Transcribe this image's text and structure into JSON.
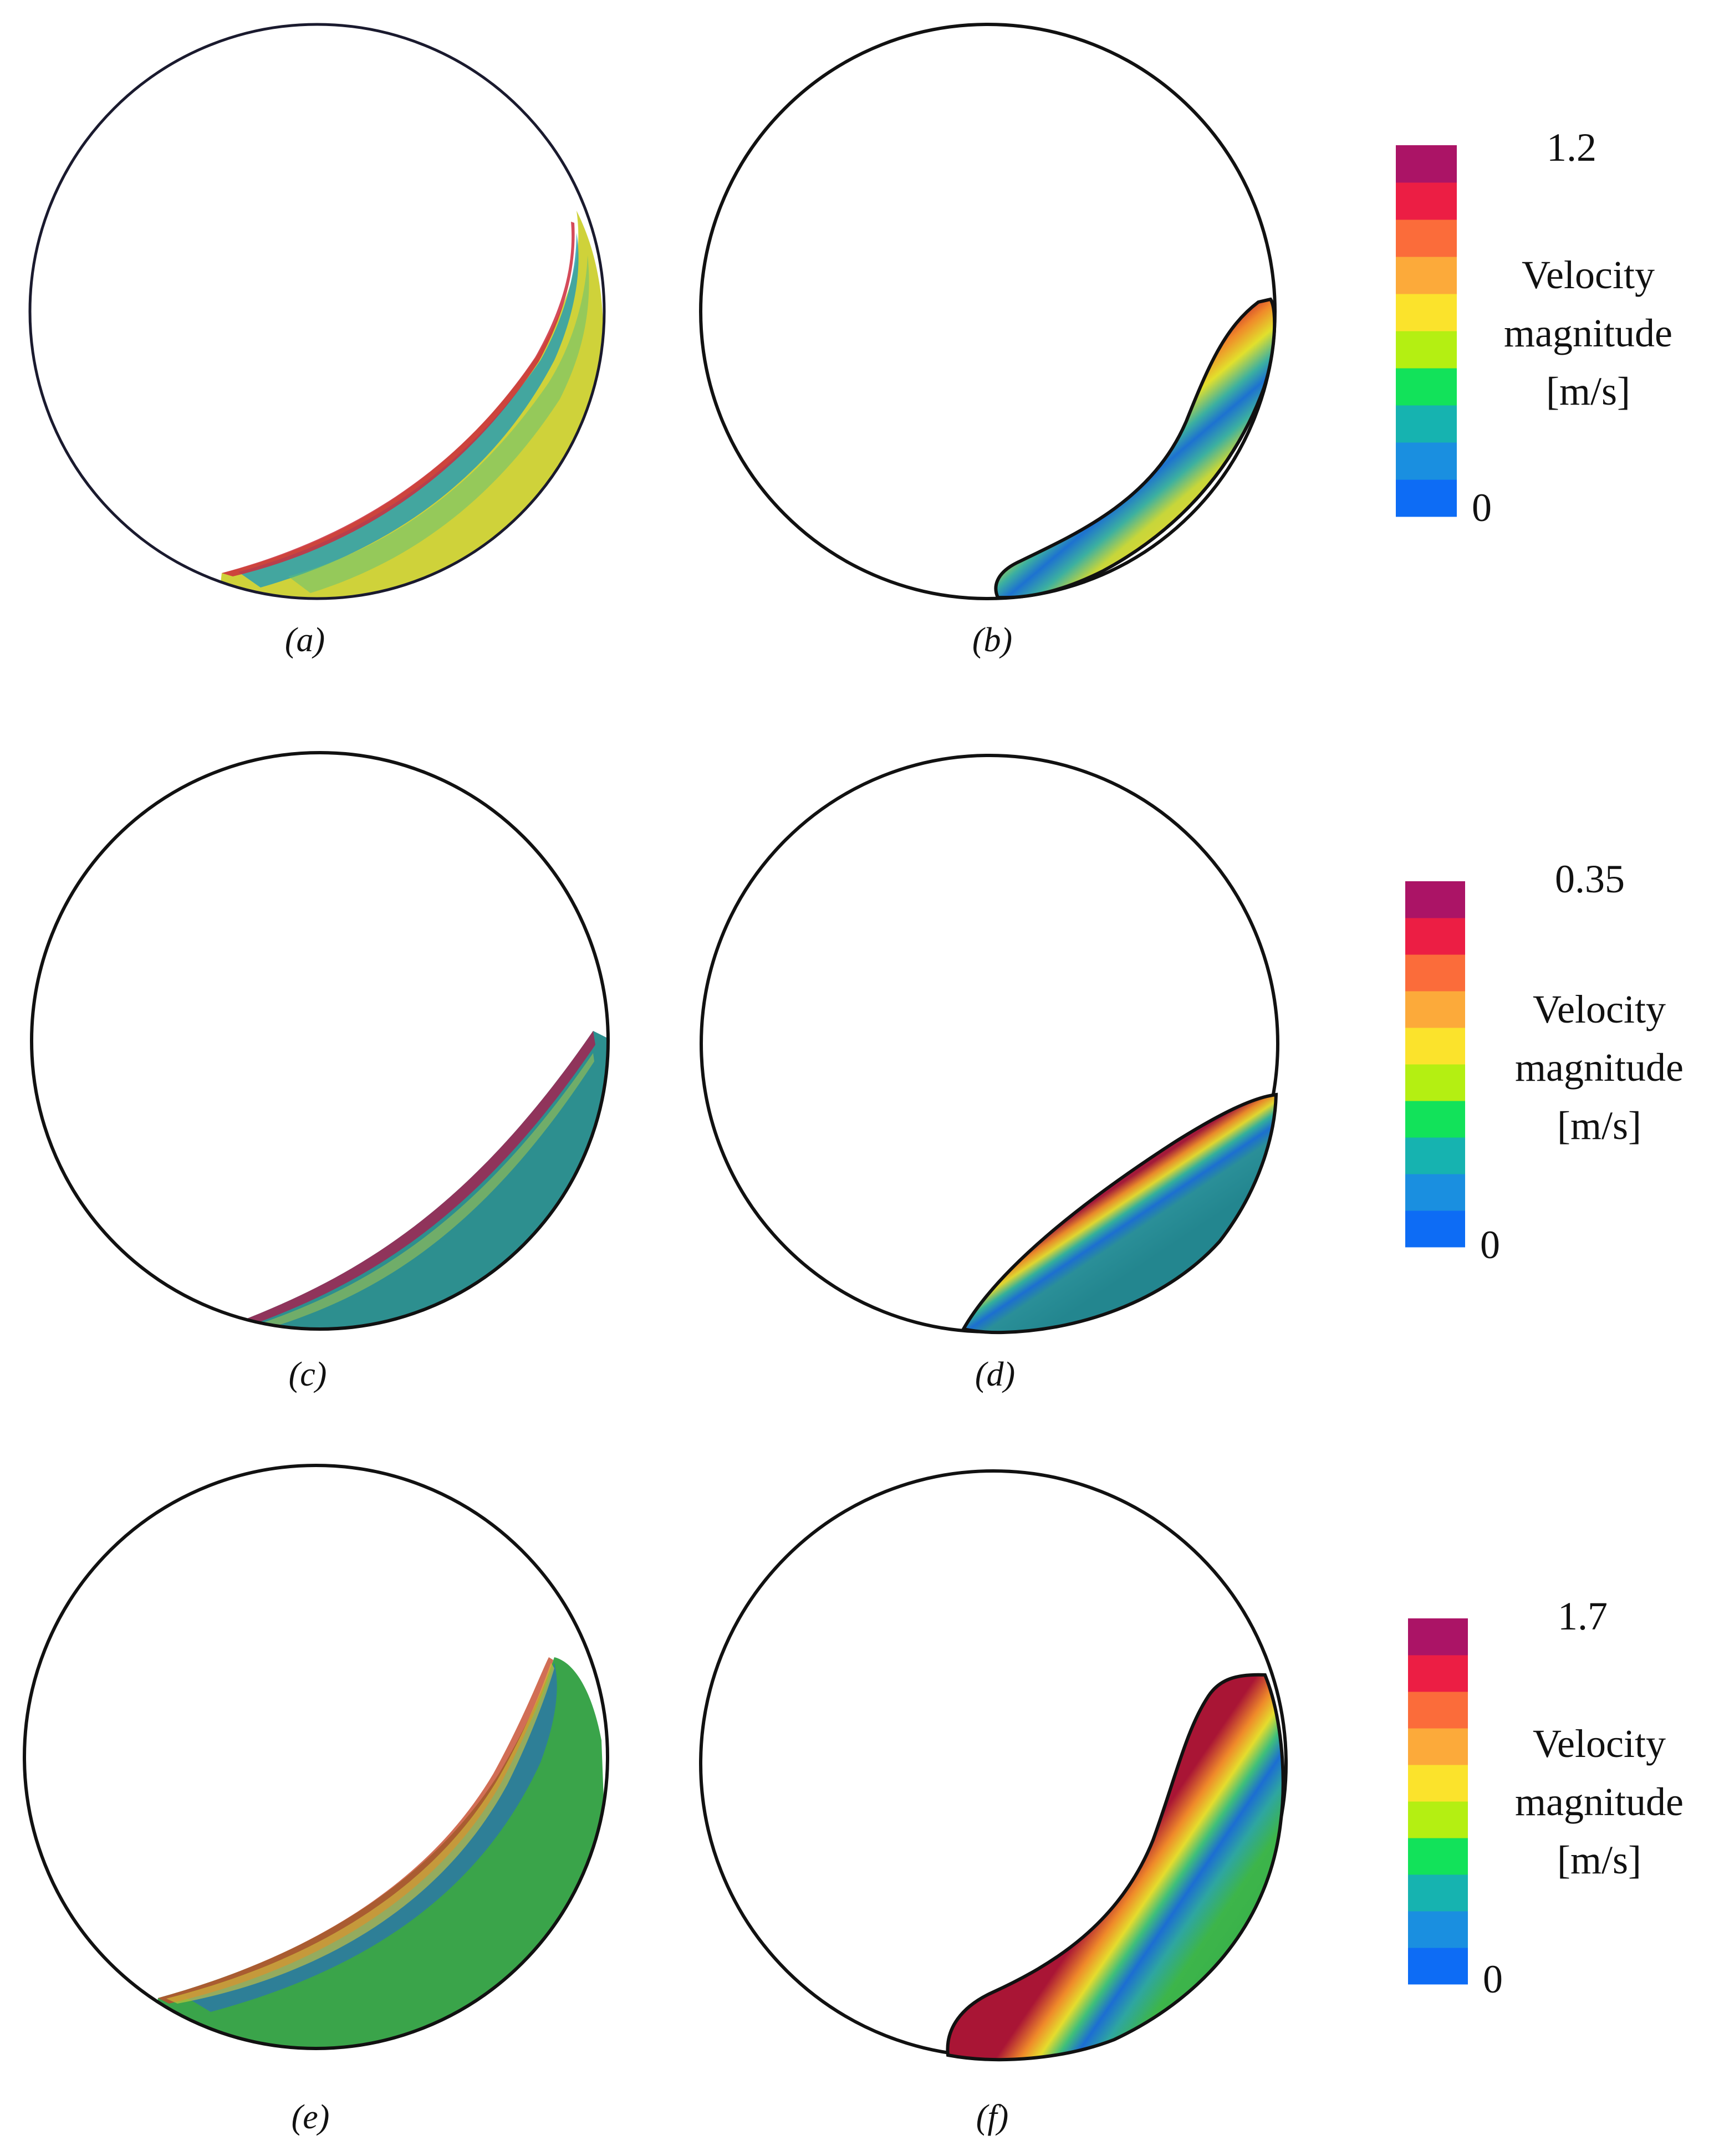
{
  "figure": {
    "panels": [
      {
        "caption": "(a)",
        "kind": "particles",
        "bed_colors": [
          "#cfd23a",
          "#2a9fb2",
          "#cc2b3d"
        ]
      },
      {
        "caption": "(b)",
        "kind": "continuum"
      },
      {
        "caption": "(c)",
        "kind": "particles",
        "bed_colors": [
          "#2d8f8f",
          "#9b2a55",
          "#a8c64a"
        ]
      },
      {
        "caption": "(d)",
        "kind": "continuum"
      },
      {
        "caption": "(e)",
        "kind": "particles",
        "bed_colors": [
          "#3aa44a",
          "#2a6fb8",
          "#c64a2a"
        ]
      },
      {
        "caption": "(f)",
        "kind": "continuum"
      }
    ],
    "colorbars": [
      {
        "max_label": "1.2",
        "min_label": "0",
        "title_lines": [
          "Velocity",
          "magnitude",
          "[m/s]"
        ]
      },
      {
        "max_label": "0.35",
        "min_label": "0",
        "title_lines": [
          "Velocity",
          "magnitude",
          "[m/s]"
        ]
      },
      {
        "max_label": "1.7",
        "min_label": "0",
        "title_lines": [
          "Velocity",
          "magnitude",
          "[m/s]"
        ]
      }
    ],
    "colorbar_colors": [
      "#0d6cf5",
      "#1a8fe0",
      "#16b3b0",
      "#12e25a",
      "#b4ef12",
      "#fbe32c",
      "#fcaa3a",
      "#fb6c3a",
      "#ec1e44",
      "#ab1466"
    ],
    "outline_color": "#111111"
  }
}
